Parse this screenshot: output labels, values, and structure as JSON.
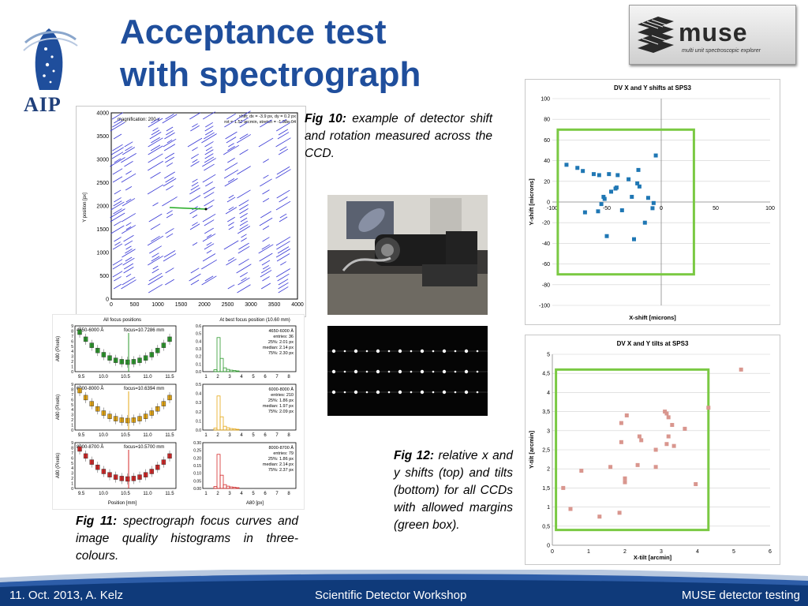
{
  "slide": {
    "title_line1": "Acceptance test",
    "title_line2": "with spectrograph",
    "aip_label": "AIP",
    "muse_name": "muse",
    "muse_subtitle": "multi unit spectroscopic explorer"
  },
  "captions": {
    "fig10_label": "Fig 10:",
    "fig10_text": "example of detector shift and rotation measured across the CCD.",
    "fig11_label": "Fig 11:",
    "fig11_text": "spectrograph focus curves and image quality histograms in three-colours.",
    "fig12_label": "Fig 12:",
    "fig12_text": "relative x and y shifts (top) and tilts (bottom) for all CCDs with allowed margins (green box)."
  },
  "footer": {
    "left": "11. Oct. 2013, A. Kelz",
    "center": "Scientific Detector Workshop",
    "right": "MUSE detector testing"
  },
  "fig10": {
    "info_left": "magnification: 200 x",
    "info_right_1": "shift: dx = -3.9 px, dy = 0.2 px",
    "info_right_2": "rot = 1.52 arcmin, stretch = -1.98e-04",
    "ylabel": "Y position [px]",
    "x_ticks": [
      "0",
      "500",
      "1000",
      "1500",
      "2000",
      "2500",
      "3000",
      "3500",
      "4000"
    ],
    "y_ticks": [
      "0",
      "500",
      "1000",
      "1500",
      "2000",
      "2500",
      "3000",
      "3500",
      "4000"
    ]
  },
  "fig11": {
    "left_title": "All focus positions",
    "right_title": "At best focus position (10.60 mm)",
    "xlabel_left": "Position [mm]",
    "xlabel_right": "A80 [px]",
    "ylabel": "A80 (Pixels)",
    "x_ticks": [
      "9.5",
      "10.0",
      "10.5",
      "11.0",
      "11.5"
    ],
    "hist_x_ticks": [
      "1",
      "2",
      "3",
      "4",
      "5",
      "6",
      "7",
      "8"
    ],
    "rows": [
      {
        "range": "4650-6000 Å",
        "focus": "focus=10.7286 mm",
        "entries": "entries: 36",
        "p25": "25%: 2.01 px",
        "median": "median: 2.14 px",
        "p75": "75%: 2.30 px",
        "color": "#2e9a2e",
        "hist_ticks": [
          "0.0",
          "0.1",
          "0.2",
          "0.3",
          "0.4",
          "0.5",
          "0.6"
        ]
      },
      {
        "range": "6000-8000 Å",
        "focus": "focus=10.6394 mm",
        "entries": "entries: 210",
        "p25": "25%: 1.86 px",
        "median": "median: 1.97 px",
        "p75": "75%: 2.09 px",
        "color": "#e6a817",
        "hist_ticks": [
          "0.0",
          "0.1",
          "0.2",
          "0.3",
          "0.4",
          "0.5"
        ]
      },
      {
        "range": "8000-8700 Å",
        "focus": "focus=10.5700 mm",
        "entries": "entries: 79",
        "p25": "25%: 1.86 px",
        "median": "median: 2.14 px",
        "p75": "75%: 2.37 px",
        "color": "#d42a2a",
        "hist_ticks": [
          "0.00",
          "0.05",
          "0.10",
          "0.15",
          "0.20",
          "0.25",
          "0.30"
        ]
      }
    ]
  },
  "chart_data": [
    {
      "type": "scatter",
      "title": "DV X and Y shifts at SPS3",
      "xlabel": "X-shift  [microns]",
      "ylabel": "Y-shift  [microns]",
      "xlim": [
        -100,
        100
      ],
      "ylim": [
        -100,
        100
      ],
      "x_ticks": [
        "-100",
        "-50",
        "0",
        "50",
        "100"
      ],
      "y_ticks": [
        "100",
        "80",
        "60",
        "40",
        "20",
        "0",
        "-20",
        "-40",
        "-60",
        "-80",
        "-100"
      ],
      "margin_box": {
        "x": [
          -95,
          30
        ],
        "y": [
          -70,
          70
        ]
      },
      "marker_color": "#1f77b4",
      "box_color": "#7ac943",
      "points": [
        [
          -87,
          36
        ],
        [
          -77,
          33
        ],
        [
          -72,
          30
        ],
        [
          -62,
          27
        ],
        [
          -57,
          26
        ],
        [
          -48,
          27
        ],
        [
          -40,
          26
        ],
        [
          -53,
          5
        ],
        [
          -46,
          10
        ],
        [
          -42,
          13
        ],
        [
          -41,
          14
        ],
        [
          -30,
          22
        ],
        [
          -27,
          5
        ],
        [
          -22,
          18
        ],
        [
          -21,
          31
        ],
        [
          -20,
          15
        ],
        [
          -58,
          -9
        ],
        [
          -55,
          -2
        ],
        [
          -52,
          3
        ],
        [
          -50,
          -33
        ],
        [
          -36,
          -8
        ],
        [
          -70,
          -10
        ],
        [
          -5,
          45
        ],
        [
          -12,
          4
        ],
        [
          -8,
          -6
        ],
        [
          -15,
          -20
        ],
        [
          -25,
          -36
        ],
        [
          -7,
          -1
        ]
      ]
    },
    {
      "type": "scatter",
      "title": "DV X and Y tilts at SPS3",
      "xlabel": "X-tilt  [arcmin]",
      "ylabel": "Y-tilt  [arcmin]",
      "xlim": [
        0,
        6
      ],
      "ylim": [
        0,
        5
      ],
      "x_ticks": [
        "0",
        "1",
        "2",
        "3",
        "4",
        "5",
        "6"
      ],
      "y_ticks": [
        "5",
        "4,5",
        "4",
        "3,5",
        "3",
        "2,5",
        "2",
        "1,5",
        "1",
        "0,5",
        "0"
      ],
      "margin_box": {
        "x": [
          0.1,
          4.3
        ],
        "y": [
          0.4,
          4.6
        ]
      },
      "marker_color": "#d9968e",
      "box_color": "#7ac943",
      "points": [
        [
          0.3,
          1.5
        ],
        [
          0.5,
          0.95
        ],
        [
          0.8,
          1.95
        ],
        [
          1.3,
          0.75
        ],
        [
          1.6,
          2.05
        ],
        [
          1.85,
          0.85
        ],
        [
          1.9,
          2.7
        ],
        [
          1.9,
          3.2
        ],
        [
          2.0,
          1.65
        ],
        [
          2.0,
          1.75
        ],
        [
          2.05,
          3.4
        ],
        [
          2.35,
          2.1
        ],
        [
          2.4,
          2.85
        ],
        [
          2.45,
          2.75
        ],
        [
          2.85,
          2.5
        ],
        [
          2.85,
          2.05
        ],
        [
          3.1,
          3.5
        ],
        [
          3.15,
          3.45
        ],
        [
          3.2,
          3.35
        ],
        [
          3.3,
          3.15
        ],
        [
          3.15,
          2.65
        ],
        [
          3.2,
          2.85
        ],
        [
          3.35,
          2.6
        ],
        [
          3.65,
          3.05
        ],
        [
          3.95,
          1.6
        ],
        [
          4.3,
          3.6
        ],
        [
          5.2,
          4.6
        ]
      ]
    }
  ]
}
